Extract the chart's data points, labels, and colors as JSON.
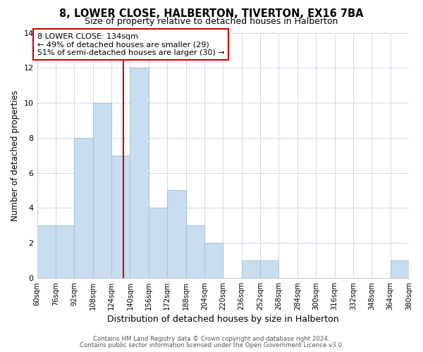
{
  "title": "8, LOWER CLOSE, HALBERTON, TIVERTON, EX16 7BA",
  "subtitle": "Size of property relative to detached houses in Halberton",
  "xlabel": "Distribution of detached houses by size in Halberton",
  "ylabel": "Number of detached properties",
  "bin_edges": [
    60,
    76,
    92,
    108,
    124,
    140,
    156,
    172,
    188,
    204,
    220,
    236,
    252,
    268,
    284,
    300,
    316,
    332,
    348,
    364,
    380
  ],
  "counts": [
    3,
    3,
    8,
    10,
    7,
    12,
    4,
    5,
    3,
    2,
    0,
    1,
    1,
    0,
    0,
    0,
    0,
    0,
    0,
    1
  ],
  "bar_color": "#c9ddf0",
  "bar_edge_color": "#a8c4de",
  "vline_x": 134,
  "vline_color": "#cc0000",
  "ylim": [
    0,
    14
  ],
  "yticks": [
    0,
    2,
    4,
    6,
    8,
    10,
    12,
    14
  ],
  "annotation_text": "8 LOWER CLOSE: 134sqm\n← 49% of detached houses are smaller (29)\n51% of semi-detached houses are larger (30) →",
  "annotation_box_edgecolor": "#cc0000",
  "footer_line1": "Contains HM Land Registry data © Crown copyright and database right 2024.",
  "footer_line2": "Contains public sector information licensed under the Open Government Licence v3.0.",
  "tick_labels": [
    "60sqm",
    "76sqm",
    "92sqm",
    "108sqm",
    "124sqm",
    "140sqm",
    "156sqm",
    "172sqm",
    "188sqm",
    "204sqm",
    "220sqm",
    "236sqm",
    "252sqm",
    "268sqm",
    "284sqm",
    "300sqm",
    "316sqm",
    "332sqm",
    "348sqm",
    "364sqm",
    "380sqm"
  ]
}
